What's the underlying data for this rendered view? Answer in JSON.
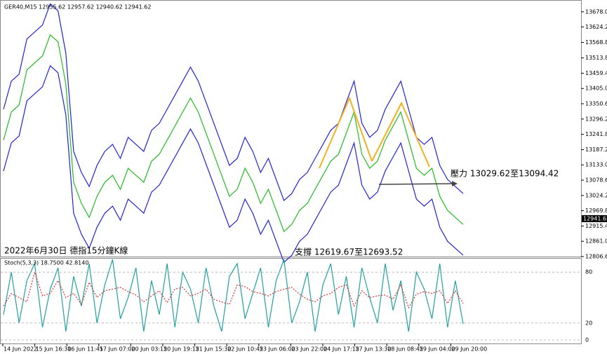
{
  "chart_data": {
    "type": "line",
    "title": "GER40,M15  12955.62 12957.62 12940.62 12941.62",
    "annotations": [
      "2022年6月30日 德指15分鐘K線",
      "支撐 12619.67至12693.52",
      "壓力 13029.62至13094.42"
    ],
    "last_price": 12941.62,
    "x_labels": [
      "14 Jun 2022",
      "15 Jun 16:30",
      "16 Jun 11:45",
      "17 Jun 07:00",
      "20 Jun 03:15",
      "20 Jun 19:15",
      "21 Jun 15:30",
      "22 Jun 10:45",
      "23 Jun 06:00",
      "23 Jun 22:00",
      "24 Jun 17:15",
      "27 Jun 13:30",
      "28 Jun 08:45",
      "29 Jun 04:00",
      "29 Jun 20:00"
    ],
    "ylim": [
      12806.6,
      13700
    ],
    "yticks": [
      {
        "value": 13678,
        "label": "13678.00"
      },
      {
        "value": 13624.2,
        "label": "13624.20"
      },
      {
        "value": 13568.8,
        "label": "13568.80"
      },
      {
        "value": 13513.8,
        "label": "13513.80"
      },
      {
        "value": 13459.4,
        "label": "13459.40"
      },
      {
        "value": 13405,
        "label": "13405.00"
      },
      {
        "value": 13350.6,
        "label": "13350.60"
      },
      {
        "value": 13296.2,
        "label": "13296.20"
      },
      {
        "value": 13241.8,
        "label": "13241.80"
      },
      {
        "value": 13187.2,
        "label": "13187.20"
      },
      {
        "value": 13133,
        "label": "13133.00"
      },
      {
        "value": 13078.6,
        "label": "13078.60"
      },
      {
        "value": 13024.2,
        "label": "13024.20"
      },
      {
        "value": 12969.8,
        "label": "12969.80"
      },
      {
        "value": 12915.4,
        "label": "12915.40"
      },
      {
        "value": 12861,
        "label": "12861.00"
      },
      {
        "value": 12806.6,
        "label": "12806.60"
      }
    ],
    "series": [
      {
        "color": "#22bb22",
        "values": [
          13221,
          13321,
          13346,
          13471,
          13496,
          13521,
          13596,
          13571,
          13421,
          13071,
          12996,
          12946,
          13021,
          13071,
          13096,
          13046,
          13121,
          13096,
          13071,
          13146,
          13171,
          13221,
          13271,
          13321,
          13371,
          13321,
          13246,
          13171,
          13096,
          13021,
          13046,
          13121,
          13071,
          12996,
          13046,
          12971,
          12896,
          12921,
          12971,
          12996,
          13046,
          13096,
          13146,
          13171,
          13246,
          13321,
          13171,
          13121,
          13146,
          13221,
          13271,
          13321,
          13221,
          13121,
          13096,
          13121,
          13021,
          12971,
          12946,
          12921
        ]
      },
      {
        "color": "#2222dd",
        "values": [
          13331,
          13431,
          13456,
          13581,
          13606,
          13631,
          13706,
          13681,
          13531,
          13181,
          13106,
          13056,
          13131,
          13181,
          13206,
          13156,
          13231,
          13206,
          13181,
          13256,
          13281,
          13331,
          13381,
          13431,
          13481,
          13431,
          13356,
          13281,
          13206,
          13131,
          13156,
          13231,
          13181,
          13106,
          13156,
          13081,
          13006,
          13031,
          13081,
          13106,
          13156,
          13206,
          13256,
          13281,
          13356,
          13431,
          13281,
          13231,
          13256,
          13331,
          13381,
          13431,
          13331,
          13231,
          13206,
          13231,
          13131,
          13081,
          13056,
          13031
        ]
      },
      {
        "color": "#2222dd",
        "values": [
          13111,
          13211,
          13236,
          13361,
          13386,
          13411,
          13486,
          13461,
          13311,
          12961,
          12886,
          12836,
          12911,
          12961,
          12986,
          12936,
          13011,
          12986,
          12961,
          13036,
          13061,
          13111,
          13161,
          13211,
          13261,
          13211,
          13136,
          13061,
          12986,
          12911,
          12936,
          13011,
          12961,
          12886,
          12936,
          12861,
          12786,
          12811,
          12861,
          12886,
          12936,
          12986,
          13036,
          13061,
          13136,
          13211,
          13061,
          13011,
          13036,
          13111,
          13161,
          13211,
          13111,
          13011,
          12986,
          13011,
          12911,
          12861,
          12836,
          12811
        ]
      }
    ],
    "oscillator": {
      "title": "Stoch(5,3,3) 18.7500 42.8140",
      "ylim": [
        0,
        100
      ],
      "yticks": [
        80,
        20,
        0
      ],
      "series": [
        {
          "color": "#20a0a0",
          "values": [
            30,
            80,
            20,
            70,
            90,
            15,
            60,
            85,
            10,
            75,
            40,
            90,
            20,
            65,
            95,
            25,
            50,
            85,
            10,
            70,
            30,
            90,
            15,
            80,
            60,
            20,
            85,
            40,
            10,
            75,
            90,
            25,
            55,
            85,
            15,
            70,
            95,
            20,
            45,
            80,
            10,
            65,
            90,
            30,
            75,
            15,
            85,
            50,
            20,
            90,
            35,
            70,
            10,
            80,
            60,
            25,
            90,
            15,
            70,
            19
          ]
        },
        {
          "color": "#dd3030",
          "values": [
            40,
            55,
            50,
            45,
            80,
            52,
            55,
            70,
            50,
            55,
            42,
            68,
            50,
            58,
            60,
            62,
            57,
            53,
            45,
            52,
            58,
            44,
            60,
            62,
            52,
            55,
            60,
            48,
            45,
            42,
            65,
            63,
            57,
            55,
            52,
            57,
            60,
            62,
            54,
            48,
            45,
            52,
            55,
            62,
            65,
            40,
            58,
            50,
            52,
            53,
            48,
            65,
            38,
            54,
            57,
            55,
            58,
            43,
            58,
            43
          ]
        }
      ]
    }
  }
}
